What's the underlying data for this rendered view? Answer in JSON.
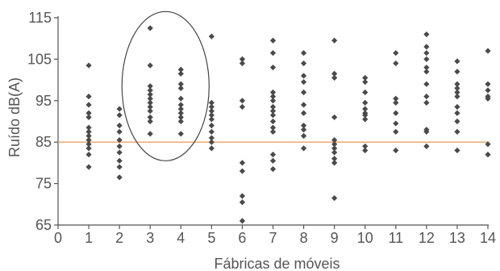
{
  "chart_data": {
    "type": "scatter",
    "title": "",
    "xlabel": "Fábricas de móveis",
    "ylabel": "Ruído dB(A)",
    "xlim": [
      0,
      14
    ],
    "ylim": [
      65,
      115
    ],
    "x_ticks": [
      "0",
      "1",
      "2",
      "3",
      "4",
      "5",
      "6",
      "7",
      "8",
      "9",
      "10",
      "11",
      "12",
      "13",
      "14"
    ],
    "y_ticks": [
      "65",
      "75",
      "85",
      "95",
      "105",
      "115"
    ],
    "grid": false,
    "legend": "none",
    "reference_line": {
      "y": 85,
      "color": "#e8a060"
    },
    "highlight_ellipse": {
      "groups": [
        3,
        4
      ],
      "y_range": [
        80.5,
        116.5
      ]
    },
    "marker_color": "#4a4a4a",
    "points": [
      {
        "x": 1,
        "y": 103.5
      },
      {
        "x": 1,
        "y": 96
      },
      {
        "x": 1,
        "y": 94
      },
      {
        "x": 1,
        "y": 92
      },
      {
        "x": 1,
        "y": 91
      },
      {
        "x": 1,
        "y": 88.5
      },
      {
        "x": 1,
        "y": 87.5
      },
      {
        "x": 1,
        "y": 86.5
      },
      {
        "x": 1,
        "y": 85.5
      },
      {
        "x": 1,
        "y": 84.5
      },
      {
        "x": 1,
        "y": 83.5
      },
      {
        "x": 1,
        "y": 82
      },
      {
        "x": 1,
        "y": 79
      },
      {
        "x": 2,
        "y": 93
      },
      {
        "x": 2,
        "y": 91.5
      },
      {
        "x": 2,
        "y": 89
      },
      {
        "x": 2,
        "y": 87.5
      },
      {
        "x": 2,
        "y": 85.5
      },
      {
        "x": 2,
        "y": 84
      },
      {
        "x": 2,
        "y": 82.5
      },
      {
        "x": 2,
        "y": 80.5
      },
      {
        "x": 2,
        "y": 79
      },
      {
        "x": 2,
        "y": 76.5
      },
      {
        "x": 3,
        "y": 112.5
      },
      {
        "x": 3,
        "y": 103.5
      },
      {
        "x": 3,
        "y": 98.5
      },
      {
        "x": 3,
        "y": 97.5
      },
      {
        "x": 3,
        "y": 96.5
      },
      {
        "x": 3,
        "y": 95.5
      },
      {
        "x": 3,
        "y": 94.5
      },
      {
        "x": 3,
        "y": 93.5
      },
      {
        "x": 3,
        "y": 92.5
      },
      {
        "x": 3,
        "y": 91
      },
      {
        "x": 3,
        "y": 90
      },
      {
        "x": 3,
        "y": 87
      },
      {
        "x": 4,
        "y": 102.5
      },
      {
        "x": 4,
        "y": 101.5
      },
      {
        "x": 4,
        "y": 99
      },
      {
        "x": 4,
        "y": 98
      },
      {
        "x": 4,
        "y": 95.5
      },
      {
        "x": 4,
        "y": 94
      },
      {
        "x": 4,
        "y": 93
      },
      {
        "x": 4,
        "y": 92
      },
      {
        "x": 4,
        "y": 91
      },
      {
        "x": 4,
        "y": 90
      },
      {
        "x": 4,
        "y": 87
      },
      {
        "x": 5,
        "y": 110.5
      },
      {
        "x": 5,
        "y": 94.5
      },
      {
        "x": 5,
        "y": 93.5
      },
      {
        "x": 5,
        "y": 92.5
      },
      {
        "x": 5,
        "y": 91.5
      },
      {
        "x": 5,
        "y": 90.5
      },
      {
        "x": 5,
        "y": 89
      },
      {
        "x": 5,
        "y": 87.5
      },
      {
        "x": 5,
        "y": 86
      },
      {
        "x": 5,
        "y": 85
      },
      {
        "x": 5,
        "y": 83.5
      },
      {
        "x": 6,
        "y": 105
      },
      {
        "x": 6,
        "y": 104
      },
      {
        "x": 6,
        "y": 95
      },
      {
        "x": 6,
        "y": 93.5
      },
      {
        "x": 6,
        "y": 80
      },
      {
        "x": 6,
        "y": 78
      },
      {
        "x": 6,
        "y": 72
      },
      {
        "x": 6,
        "y": 70.5
      },
      {
        "x": 6,
        "y": 66
      },
      {
        "x": 7,
        "y": 109.5
      },
      {
        "x": 7,
        "y": 106.5
      },
      {
        "x": 7,
        "y": 103
      },
      {
        "x": 7,
        "y": 97
      },
      {
        "x": 7,
        "y": 96
      },
      {
        "x": 7,
        "y": 95
      },
      {
        "x": 7,
        "y": 93.5
      },
      {
        "x": 7,
        "y": 92.5
      },
      {
        "x": 7,
        "y": 91.5
      },
      {
        "x": 7,
        "y": 90
      },
      {
        "x": 7,
        "y": 88.5
      },
      {
        "x": 7,
        "y": 87.5
      },
      {
        "x": 7,
        "y": 82
      },
      {
        "x": 7,
        "y": 80.5
      },
      {
        "x": 7,
        "y": 78.5
      },
      {
        "x": 8,
        "y": 106.5
      },
      {
        "x": 8,
        "y": 104
      },
      {
        "x": 8,
        "y": 101
      },
      {
        "x": 8,
        "y": 99.5
      },
      {
        "x": 8,
        "y": 97
      },
      {
        "x": 8,
        "y": 94
      },
      {
        "x": 8,
        "y": 92
      },
      {
        "x": 8,
        "y": 89
      },
      {
        "x": 8,
        "y": 88
      },
      {
        "x": 8,
        "y": 86.5
      },
      {
        "x": 8,
        "y": 83.5
      },
      {
        "x": 9,
        "y": 109.5
      },
      {
        "x": 9,
        "y": 101.5
      },
      {
        "x": 9,
        "y": 100.5
      },
      {
        "x": 9,
        "y": 91
      },
      {
        "x": 9,
        "y": 85.5
      },
      {
        "x": 9,
        "y": 84.5
      },
      {
        "x": 9,
        "y": 83.5
      },
      {
        "x": 9,
        "y": 82.5
      },
      {
        "x": 9,
        "y": 81
      },
      {
        "x": 9,
        "y": 80
      },
      {
        "x": 9,
        "y": 71.5
      },
      {
        "x": 10,
        "y": 100.5
      },
      {
        "x": 10,
        "y": 99.5
      },
      {
        "x": 10,
        "y": 97
      },
      {
        "x": 10,
        "y": 94.5
      },
      {
        "x": 10,
        "y": 93
      },
      {
        "x": 10,
        "y": 92
      },
      {
        "x": 10,
        "y": 91.5
      },
      {
        "x": 10,
        "y": 90.5
      },
      {
        "x": 10,
        "y": 84
      },
      {
        "x": 10,
        "y": 83
      },
      {
        "x": 11,
        "y": 106.5
      },
      {
        "x": 11,
        "y": 104
      },
      {
        "x": 11,
        "y": 95.5
      },
      {
        "x": 11,
        "y": 94.5
      },
      {
        "x": 11,
        "y": 92
      },
      {
        "x": 11,
        "y": 89.5
      },
      {
        "x": 11,
        "y": 87.5
      },
      {
        "x": 11,
        "y": 83
      },
      {
        "x": 12,
        "y": 111
      },
      {
        "x": 12,
        "y": 108
      },
      {
        "x": 12,
        "y": 106.5
      },
      {
        "x": 12,
        "y": 105
      },
      {
        "x": 12,
        "y": 103
      },
      {
        "x": 12,
        "y": 102
      },
      {
        "x": 12,
        "y": 99
      },
      {
        "x": 12,
        "y": 96
      },
      {
        "x": 12,
        "y": 94.5
      },
      {
        "x": 12,
        "y": 88
      },
      {
        "x": 12,
        "y": 87.5
      },
      {
        "x": 12,
        "y": 84
      },
      {
        "x": 13,
        "y": 104.5
      },
      {
        "x": 13,
        "y": 102
      },
      {
        "x": 13,
        "y": 99
      },
      {
        "x": 13,
        "y": 98
      },
      {
        "x": 13,
        "y": 97
      },
      {
        "x": 13,
        "y": 96
      },
      {
        "x": 13,
        "y": 93.5
      },
      {
        "x": 13,
        "y": 92
      },
      {
        "x": 13,
        "y": 90
      },
      {
        "x": 13,
        "y": 87.5
      },
      {
        "x": 13,
        "y": 83
      },
      {
        "x": 14,
        "y": 107
      },
      {
        "x": 14,
        "y": 99
      },
      {
        "x": 14,
        "y": 97.5
      },
      {
        "x": 14,
        "y": 96
      },
      {
        "x": 14,
        "y": 95.5
      },
      {
        "x": 14,
        "y": 84.5
      },
      {
        "x": 14,
        "y": 82
      }
    ]
  }
}
